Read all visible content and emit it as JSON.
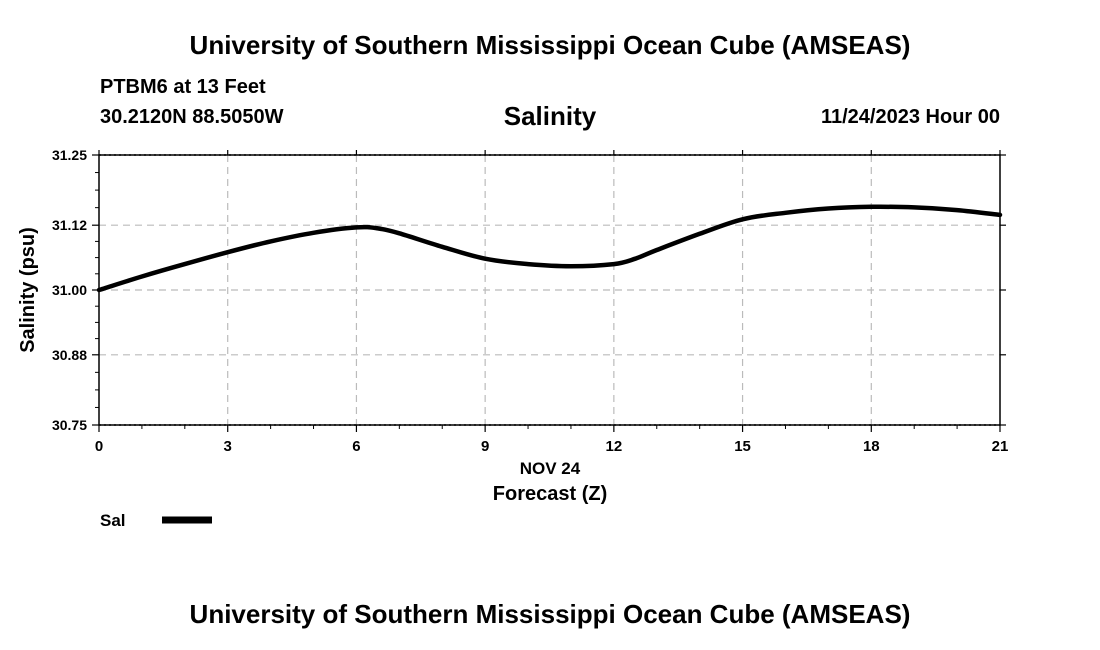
{
  "header": {
    "title": "University of Southern Mississippi Ocean Cube (AMSEAS)",
    "station": "PTBM6 at 13 Feet",
    "coords": "30.2120N  88.5050W",
    "datetime": "11/24/2023 Hour 00"
  },
  "footer": {
    "title": "University of Southern Mississippi Ocean Cube (AMSEAS)"
  },
  "colors": {
    "line": "#000000",
    "grid": "#bbbbbb"
  },
  "chart_data": {
    "type": "line",
    "title": "Salinity",
    "xlabel": "Forecast (Z)",
    "xlabel_date": "NOV 24",
    "ylabel": "Salinity (psu)",
    "xlim": [
      0,
      21
    ],
    "ylim": [
      30.75,
      31.25
    ],
    "xticks": [
      0,
      3,
      6,
      9,
      12,
      15,
      18,
      21
    ],
    "yticks": [
      30.75,
      30.88,
      31.0,
      31.12,
      31.25
    ],
    "ytick_labels": [
      "30.75",
      "30.88",
      "31.00",
      "31.12",
      "31.25"
    ],
    "legend": {
      "label": "Sal",
      "position": "bottom-left"
    },
    "series": [
      {
        "name": "Sal",
        "x": [
          0,
          1,
          2,
          3,
          4,
          5,
          6,
          6.5,
          7,
          8,
          9,
          10,
          11,
          12,
          12.5,
          13,
          14,
          15,
          16,
          17,
          18,
          19,
          20,
          21
        ],
        "values": [
          31.0,
          31.025,
          31.048,
          31.07,
          31.09,
          31.106,
          31.116,
          31.114,
          31.105,
          31.08,
          31.058,
          31.048,
          31.044,
          31.048,
          31.058,
          31.074,
          31.104,
          31.131,
          31.143,
          31.151,
          31.154,
          31.153,
          31.148,
          31.139
        ]
      }
    ]
  }
}
